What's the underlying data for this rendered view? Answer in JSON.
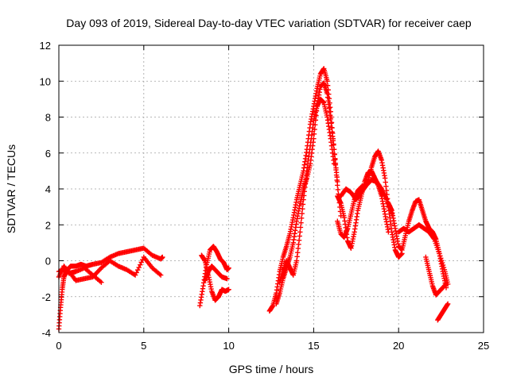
{
  "chart_data": {
    "type": "scatter",
    "title": "Day 093 of 2019, Sidereal Day-to-day VTEC variation (SDTVAR) for receiver caep",
    "xlabel": "GPS time / hours",
    "ylabel": "SDTVAR / TECUs",
    "xlim": [
      0,
      25
    ],
    "ylim": [
      -4,
      12
    ],
    "xticks": [
      0,
      5,
      10,
      15,
      20,
      25
    ],
    "yticks": [
      -4,
      -2,
      0,
      2,
      4,
      6,
      8,
      10,
      12
    ],
    "grid": true,
    "marker": "+",
    "series_color": "#ff0000",
    "series": [
      {
        "name": "SDTVAR",
        "segments": [
          {
            "x": [
              0.0,
              0.1,
              0.2,
              0.3,
              0.5,
              0.7,
              1.0,
              1.3,
              1.6,
              2.0,
              2.5,
              3.0,
              3.5,
              4.0,
              4.5,
              5.0,
              5.5,
              6.0,
              6.1
            ],
            "y": [
              -3.8,
              -2.6,
              -1.6,
              -0.9,
              -0.5,
              -0.3,
              -0.3,
              -0.2,
              -0.3,
              -0.2,
              -0.1,
              0.2,
              0.4,
              0.5,
              0.6,
              0.7,
              0.3,
              0.1,
              0.2
            ]
          },
          {
            "x": [
              0.0,
              0.3,
              0.6,
              1.0,
              1.5,
              2.0,
              2.5,
              3.0,
              3.5,
              4.0,
              4.5,
              5.0,
              5.5,
              6.0
            ],
            "y": [
              -0.6,
              -0.5,
              -0.6,
              -1.1,
              -1.0,
              -0.9,
              -0.4,
              0.0,
              -0.3,
              -0.5,
              -0.8,
              0.2,
              -0.4,
              -0.8
            ]
          },
          {
            "x": [
              0.0,
              0.3,
              0.6,
              1.0,
              1.5,
              2.0,
              2.5
            ],
            "y": [
              -0.9,
              -0.3,
              -0.7,
              -0.6,
              -0.4,
              -0.8,
              -1.2
            ]
          },
          {
            "x": [
              8.3,
              8.5,
              8.7,
              8.9,
              9.1,
              9.3,
              9.5,
              9.7,
              9.9,
              10.0
            ],
            "y": [
              -2.5,
              -1.4,
              -0.2,
              0.6,
              0.8,
              0.5,
              0.1,
              -0.1,
              -0.5,
              -0.4
            ]
          },
          {
            "x": [
              8.4,
              8.6,
              8.8,
              9.0,
              9.2,
              9.4,
              9.6,
              9.8,
              10.0
            ],
            "y": [
              0.3,
              0.0,
              -0.8,
              -1.7,
              -2.2,
              -2.0,
              -1.6,
              -1.7,
              -1.6
            ]
          },
          {
            "x": [
              8.6,
              8.8,
              9.0,
              9.3,
              9.6,
              9.9
            ],
            "y": [
              -1.1,
              -0.6,
              -0.3,
              -0.6,
              -0.9,
              -1.0
            ]
          },
          {
            "x": [
              12.4,
              12.6,
              12.8,
              13.0,
              13.2,
              13.4,
              13.6,
              13.8,
              14.0,
              14.2,
              14.4,
              14.6,
              14.8,
              15.0,
              15.2,
              15.4,
              15.6,
              15.8,
              16.0,
              16.2,
              16.4,
              16.6
            ],
            "y": [
              -2.8,
              -2.5,
              -1.8,
              -0.6,
              0.2,
              0.8,
              1.5,
              2.4,
              3.4,
              4.2,
              5.0,
              6.2,
              7.6,
              8.6,
              9.6,
              10.4,
              10.7,
              10.0,
              8.3,
              6.2,
              4.2,
              2.5
            ]
          },
          {
            "x": [
              12.8,
              13.0,
              13.2,
              13.4,
              13.6,
              13.8,
              14.0,
              14.2,
              14.4,
              14.6,
              14.8,
              15.0,
              15.2,
              15.4,
              15.6,
              15.8,
              16.0,
              16.2,
              16.4
            ],
            "y": [
              -2.4,
              -1.8,
              -1.0,
              -0.4,
              0.2,
              1.0,
              2.2,
              3.2,
              4.0,
              4.6,
              5.4,
              6.8,
              8.6,
              9.7,
              9.9,
              9.3,
              7.9,
              6.2,
              4.4
            ]
          },
          {
            "x": [
              13.0,
              13.2,
              13.4,
              13.6,
              13.8,
              14.0,
              14.2,
              14.4,
              14.6,
              14.8,
              15.0,
              15.2,
              15.4,
              15.6,
              15.8,
              16.0,
              16.2
            ],
            "y": [
              -1.2,
              -0.6,
              0.0,
              -0.4,
              -0.8,
              0.0,
              1.6,
              3.4,
              5.0,
              6.4,
              7.8,
              8.6,
              9.0,
              8.8,
              8.0,
              6.8,
              5.4
            ]
          },
          {
            "x": [
              16.4,
              16.6,
              16.8,
              17.0,
              17.2,
              17.4,
              17.6,
              17.8,
              18.0,
              18.2,
              18.4,
              18.6,
              18.8,
              19.0,
              19.2,
              19.4,
              19.6,
              19.8,
              20.0,
              20.2
            ],
            "y": [
              2.2,
              1.5,
              1.3,
              1.8,
              2.6,
              3.4,
              3.9,
              4.1,
              4.2,
              4.4,
              5.2,
              5.8,
              6.1,
              5.6,
              4.6,
              3.0,
              1.6,
              0.6,
              0.2,
              0.4
            ]
          },
          {
            "x": [
              16.4,
              16.6,
              16.8,
              17.0,
              17.2,
              17.4,
              17.6,
              17.8,
              18.0,
              18.2,
              18.4,
              18.6,
              18.8,
              19.0,
              19.2,
              19.4
            ],
            "y": [
              3.6,
              3.2,
              2.4,
              1.1,
              0.7,
              1.6,
              2.8,
              3.6,
              4.4,
              4.9,
              5.0,
              4.6,
              4.2,
              3.6,
              2.6,
              1.6
            ]
          },
          {
            "x": [
              16.6,
              16.9,
              17.2,
              17.5,
              17.8,
              18.1,
              18.4,
              18.7,
              19.0,
              19.3,
              19.6
            ],
            "y": [
              3.6,
              4.0,
              3.8,
              3.4,
              3.8,
              4.2,
              4.5,
              4.4,
              4.0,
              3.4,
              2.6
            ]
          },
          {
            "x": [
              19.4,
              19.6,
              19.8,
              20.0,
              20.2,
              20.4,
              20.6,
              20.8,
              21.0,
              21.2,
              21.4,
              21.6,
              21.8,
              22.0,
              22.2,
              22.4,
              22.6,
              22.8
            ],
            "y": [
              3.2,
              2.8,
              1.8,
              0.8,
              0.6,
              1.4,
              2.2,
              2.8,
              3.3,
              3.4,
              2.8,
              2.2,
              1.8,
              1.6,
              1.2,
              0.4,
              -0.6,
              -1.5
            ]
          },
          {
            "x": [
              20.0,
              20.3,
              20.6,
              20.9,
              21.2,
              21.5,
              21.8,
              22.1,
              22.4,
              22.7,
              22.9
            ],
            "y": [
              1.6,
              1.8,
              1.6,
              1.8,
              2.0,
              1.8,
              1.6,
              1.2,
              0.4,
              -0.5,
              -1.3
            ]
          },
          {
            "x": [
              21.6,
              21.8,
              22.0,
              22.2,
              22.4,
              22.6,
              22.8
            ],
            "y": [
              0.2,
              -0.6,
              -1.4,
              -1.9,
              -1.7,
              -1.5,
              -1.3
            ]
          },
          {
            "x": [
              22.3,
              22.5,
              22.7,
              22.9
            ],
            "y": [
              -3.3,
              -3.0,
              -2.7,
              -2.4
            ]
          }
        ]
      }
    ]
  }
}
